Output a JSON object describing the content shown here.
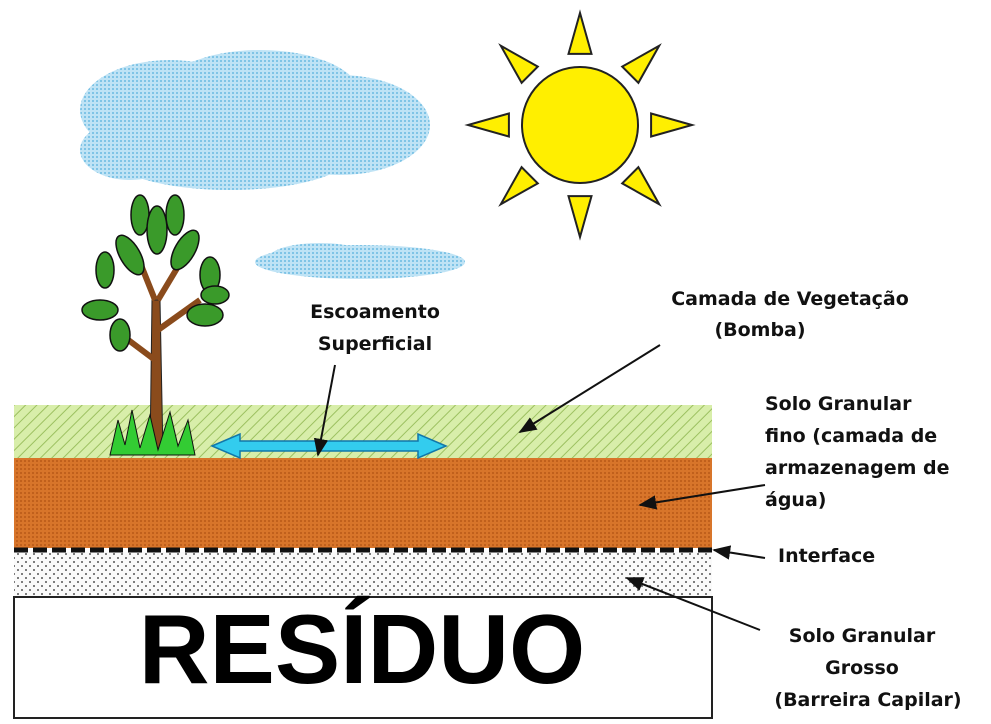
{
  "waste_label": "RESÍDUO",
  "labels": [
    {
      "lines": [
        "Escoamento",
        "Superficial"
      ]
    },
    {
      "lines": [
        "Camada de Vegetação",
        "(Bomba)"
      ]
    },
    {
      "lines": [
        "Solo Granular",
        "fino (camada de",
        "armazenagem de",
        "água)"
      ]
    },
    {
      "lines": [
        "Interface"
      ]
    },
    {
      "lines": [
        "Solo Granular",
        "Grosso",
        "(Barreira Capilar)"
      ]
    }
  ]
}
